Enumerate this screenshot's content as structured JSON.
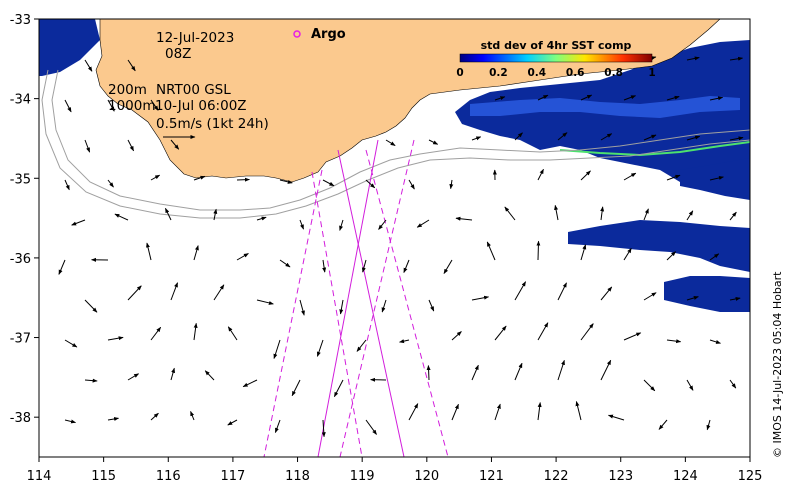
{
  "map": {
    "date": "12-Jul-2023",
    "hour": "08Z",
    "depth_200": "200m",
    "depth_1000": "1000m",
    "model": "NRT00 GSL",
    "model_time": "10-Jul 06:00Z",
    "scale_text": "0.5m/s (1kt 24h)",
    "argo_label": "Argo",
    "credit": "© IMOS 14-Jul-2023 05:04 Hobart",
    "x_ticks": [
      "114",
      "115",
      "116",
      "117",
      "118",
      "119",
      "120",
      "121",
      "122",
      "123",
      "124",
      "125"
    ],
    "y_ticks": [
      "-33",
      "-34",
      "-35",
      "-36",
      "-37",
      "-38"
    ],
    "lon_range": [
      114,
      125
    ],
    "lat_range": [
      -38.5,
      -33
    ],
    "colorbar": {
      "title": "std dev of 4hr SST comp",
      "ticks": [
        "0",
        "0.2",
        "0.4",
        "0.6",
        "0.8",
        "1"
      ],
      "range": [
        0,
        1
      ]
    },
    "colors": {
      "land": "#fbc98e",
      "sst_dark": "#0a1e8c",
      "sst_mid": "#1940c8",
      "track": "#d21edc",
      "argo": "#e61ee6",
      "isobath": "#a0a0a0"
    }
  }
}
